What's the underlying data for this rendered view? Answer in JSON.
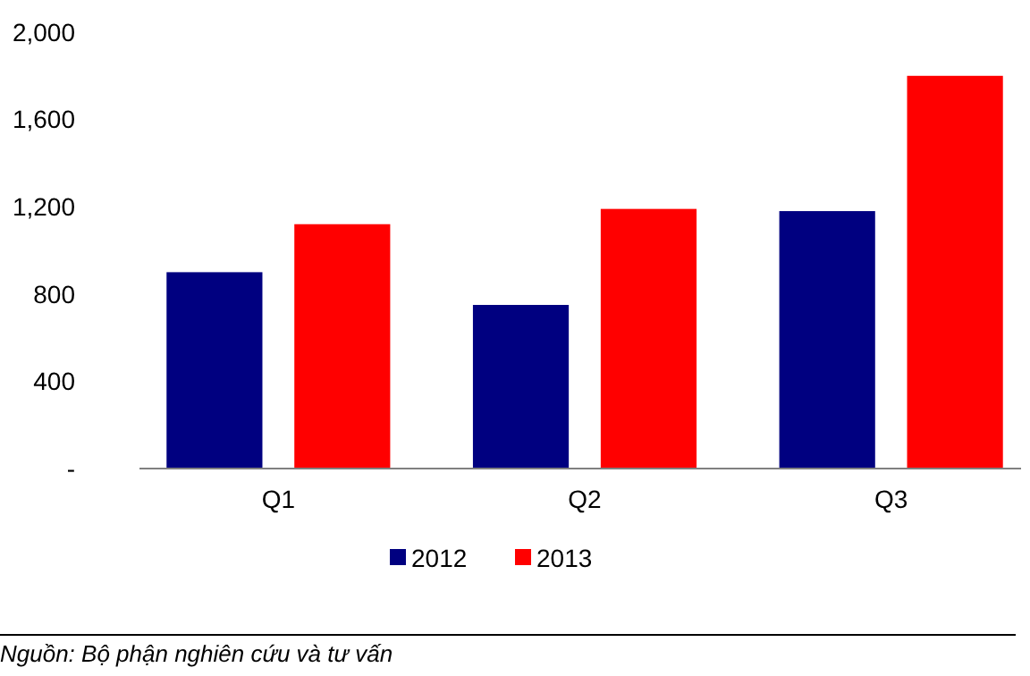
{
  "chart_data": {
    "type": "bar",
    "categories": [
      "Q1",
      "Q2",
      "Q3"
    ],
    "series": [
      {
        "name": "2012",
        "color": "#000080",
        "values": [
          900,
          750,
          1180
        ]
      },
      {
        "name": "2013",
        "color": "#ff0000",
        "values": [
          1120,
          1190,
          1800
        ]
      }
    ],
    "ylim": [
      0,
      2000
    ],
    "yticks": [
      {
        "value": 0,
        "label": "-"
      },
      {
        "value": 400,
        "label": "400"
      },
      {
        "value": 800,
        "label": "800"
      },
      {
        "value": 1200,
        "label": "1,200"
      },
      {
        "value": 1600,
        "label": "1,600"
      },
      {
        "value": 2000,
        "label": "2,000"
      }
    ],
    "grid": false,
    "legend": "bottom",
    "annotations": [
      "Nguồn: Bộ phận nghiên cứu và tư vấn"
    ]
  }
}
